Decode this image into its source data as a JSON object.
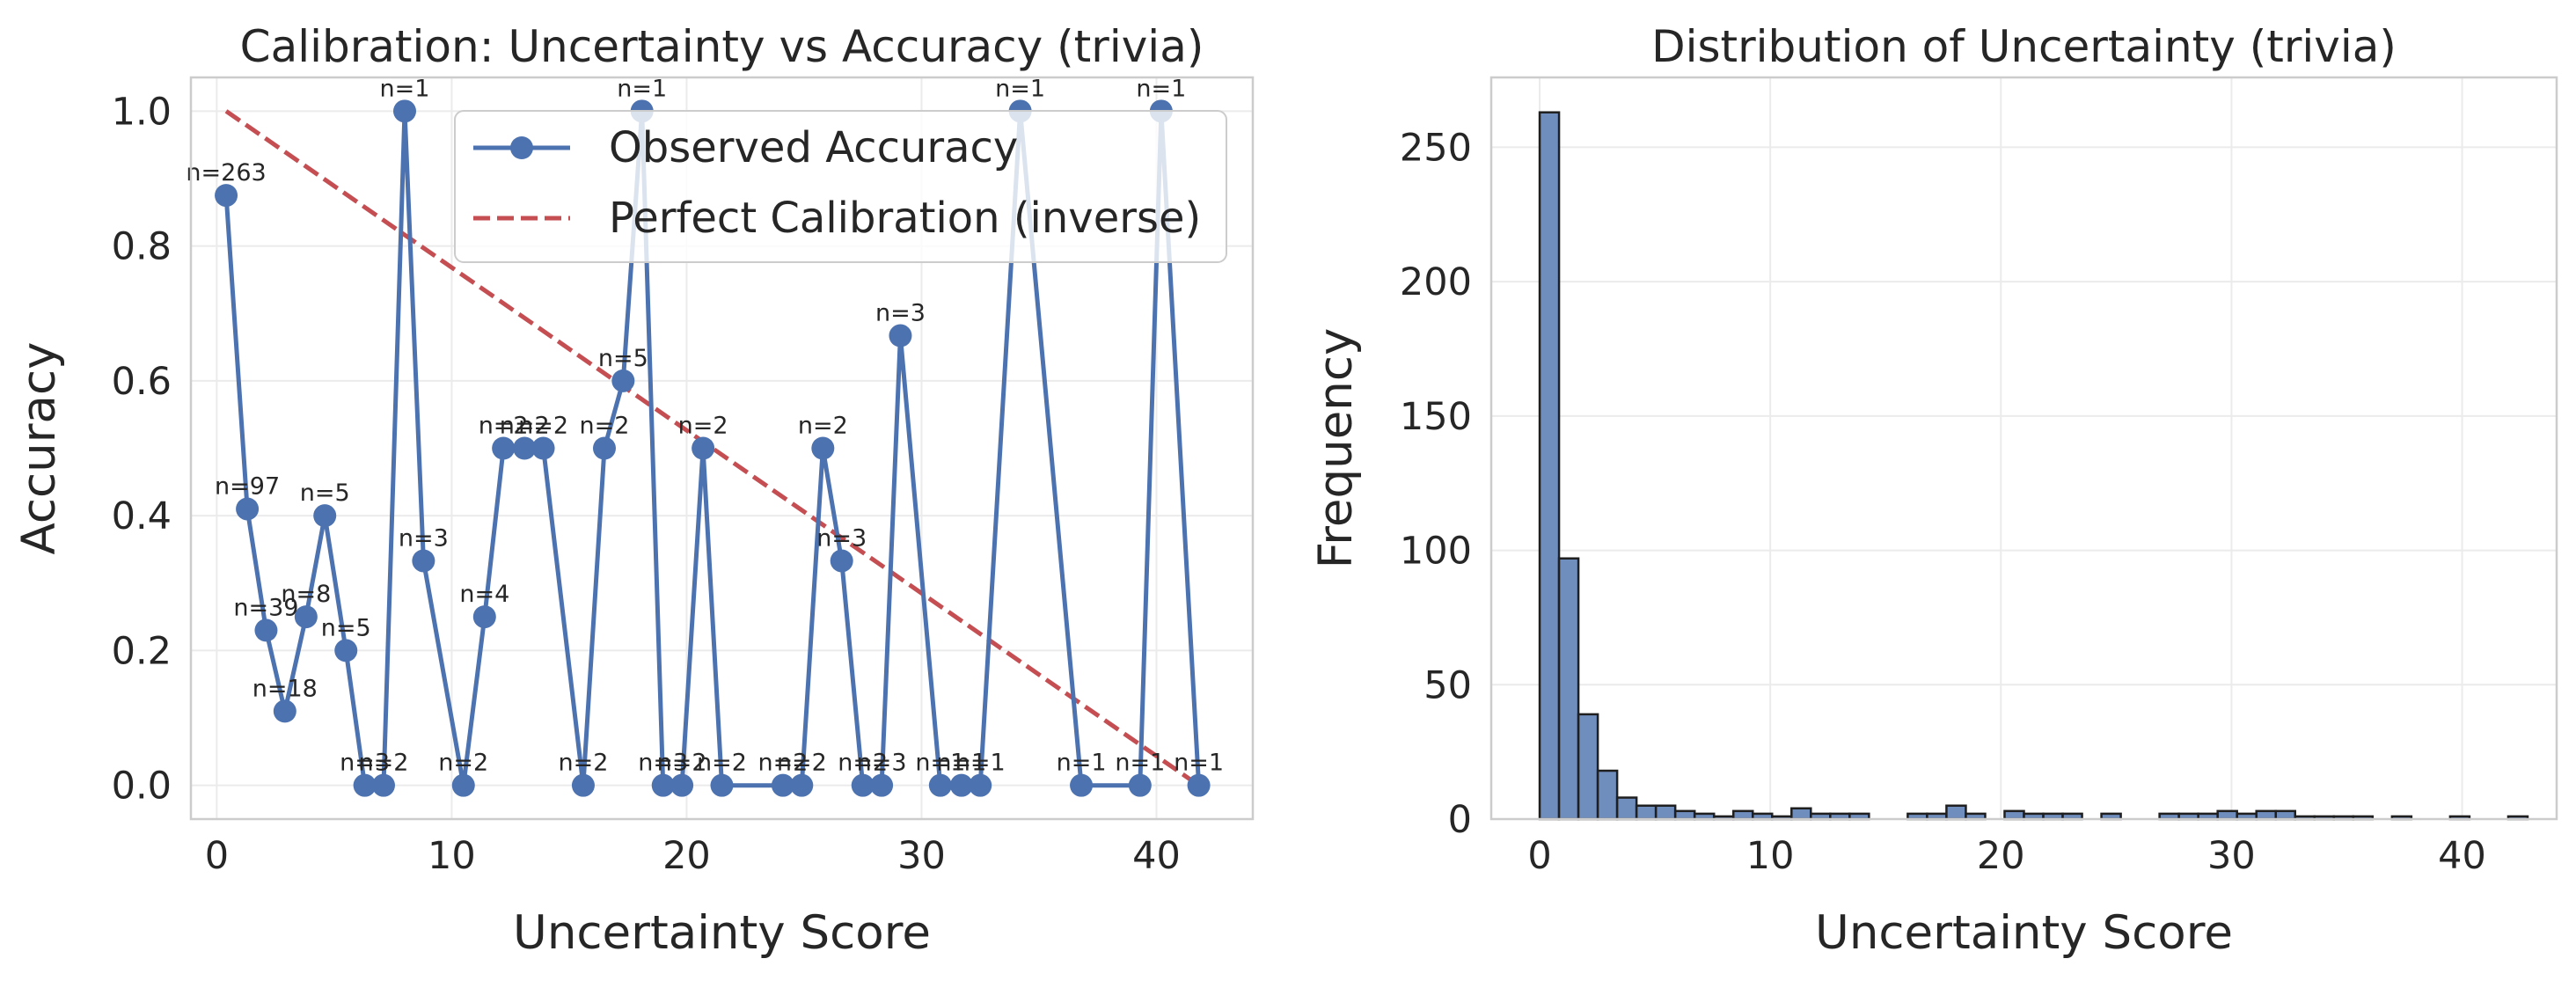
{
  "colors": {
    "series": "#4c72b0",
    "calibration": "#c44e52",
    "grid": "#ebebeb",
    "frame": "#cccccc",
    "hist_fill": "#6f8dbd",
    "hist_edge": "#1f1f1f"
  },
  "chart_data": [
    {
      "type": "line",
      "title": "Calibration: Uncertainty vs Accuracy (trivia)",
      "xlabel": "Uncertainty Score",
      "ylabel": "Accuracy",
      "xlim": [
        -1.1,
        44.1
      ],
      "ylim": [
        -0.05,
        1.05
      ],
      "xticks": [
        0,
        10,
        20,
        30,
        40
      ],
      "yticks": [
        0.0,
        0.2,
        0.4,
        0.6,
        0.8,
        1.0
      ],
      "xtick_labels": [
        "0",
        "10",
        "20",
        "30",
        "40"
      ],
      "ytick_labels": [
        "0.0",
        "0.2",
        "0.4",
        "0.6",
        "0.8",
        "1.0"
      ],
      "grid": true,
      "legend_position": "upper-right",
      "legend": [
        "Observed Accuracy",
        "Perfect Calibration (inverse)"
      ],
      "series": [
        {
          "name": "Observed Accuracy",
          "marker": "circle",
          "x": [
            0.4,
            1.3,
            2.1,
            2.9,
            3.8,
            4.6,
            5.5,
            6.3,
            7.1,
            8.0,
            8.8,
            10.5,
            11.4,
            12.2,
            13.1,
            13.9,
            15.6,
            16.5,
            17.3,
            18.1,
            19.0,
            19.8,
            20.7,
            21.5,
            24.1,
            24.9,
            25.8,
            26.6,
            27.5,
            28.3,
            29.1,
            30.8,
            31.7,
            32.5,
            34.2,
            36.8,
            39.3,
            40.2,
            41.8
          ],
          "y": [
            0.875,
            0.41,
            0.23,
            0.11,
            0.25,
            0.4,
            0.2,
            0.0,
            0.0,
            1.0,
            0.333,
            0.0,
            0.25,
            0.5,
            0.5,
            0.5,
            0.0,
            0.5,
            0.6,
            1.0,
            0.0,
            0.0,
            0.5,
            0.0,
            0.0,
            0.0,
            0.5,
            0.333,
            0.0,
            0.0,
            0.667,
            0.0,
            0.0,
            0.0,
            1.0,
            0.0,
            0.0,
            1.0,
            0.0
          ]
        },
        {
          "name": "Perfect Calibration (inverse)",
          "style": "dashed",
          "x": [
            0.4,
            41.8
          ],
          "y": [
            1.0,
            0.0
          ]
        }
      ],
      "annotations": [
        "n=263",
        "n=97",
        "n=39",
        "n=18",
        "n=8",
        "n=5",
        "n=5",
        "n=3",
        "n=2",
        "n=1",
        "n=3",
        "n=2",
        "n=4",
        "n=2",
        "n=2",
        "n=2",
        "n=2",
        "n=2",
        "n=5",
        "n=1",
        "n=3",
        "n=2",
        "n=2",
        "n=2",
        "n=2",
        "n=2",
        "n=2",
        "n=3",
        "n=2",
        "n=3",
        "n=3",
        "n=1",
        "n=1",
        "n=1",
        "n=1",
        "n=1",
        "n=1",
        "n=1",
        "n=1"
      ]
    },
    {
      "type": "bar",
      "title": "Distribution of Uncertainty (trivia)",
      "xlabel": "Uncertainty Score",
      "ylabel": "Frequency",
      "xlim": [
        -2.1,
        44.1
      ],
      "ylim": [
        0,
        276
      ],
      "xticks": [
        0,
        10,
        20,
        30,
        40
      ],
      "yticks": [
        0,
        50,
        100,
        150,
        200,
        250
      ],
      "xtick_labels": [
        "0",
        "10",
        "20",
        "30",
        "40"
      ],
      "ytick_labels": [
        "0",
        "50",
        "100",
        "150",
        "200",
        "250"
      ],
      "grid": true,
      "bin_start": 0,
      "bin_width": 0.84,
      "values": [
        263,
        97,
        39,
        18,
        8,
        5,
        5,
        3,
        2,
        1,
        3,
        2,
        1,
        4,
        2,
        2,
        2,
        0,
        0,
        2,
        2,
        5,
        2,
        0,
        3,
        2,
        2,
        2,
        0,
        2,
        0,
        0,
        2,
        2,
        2,
        3,
        2,
        3,
        3,
        1,
        1,
        1,
        1,
        0,
        1,
        0,
        0,
        1,
        0,
        0,
        1
      ]
    }
  ]
}
